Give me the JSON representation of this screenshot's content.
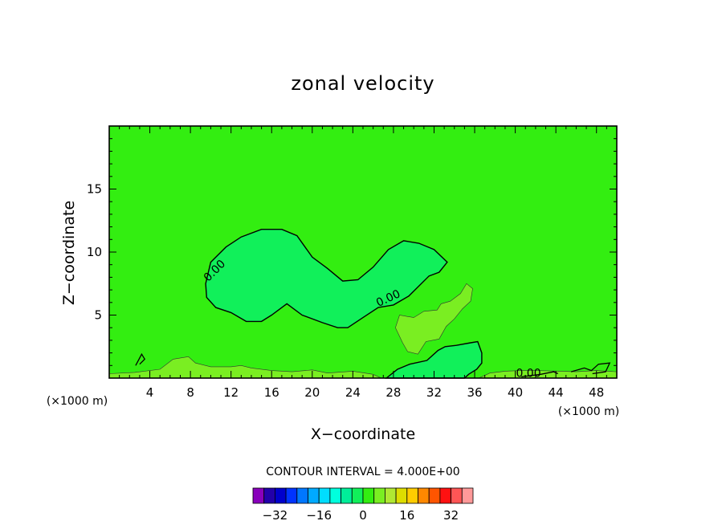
{
  "chart_data": {
    "type": "contour",
    "title": "zonal velocity",
    "xlabel": "X−coordinate",
    "ylabel": "Z−coordinate",
    "x_unit_left": "(×1000 m)",
    "x_unit_right": "(×1000 m)",
    "xlim": [
      0,
      50
    ],
    "ylim": [
      0,
      20
    ],
    "x_ticks": [
      4,
      8,
      12,
      16,
      20,
      24,
      28,
      32,
      36,
      40,
      44,
      48
    ],
    "x_tick_labels": [
      "4",
      "8",
      "12",
      "16",
      "20",
      "24",
      "28",
      "32",
      "36",
      "40",
      "44",
      "48"
    ],
    "y_ticks": [
      5,
      10,
      15
    ],
    "y_tick_labels": [
      "5",
      "10",
      "15"
    ],
    "grid": false,
    "background_level_color": "#33ee11",
    "contour_interval_text": "CONTOUR INTERVAL = 4.000E+00",
    "contour_labels": [
      {
        "text": "0.00",
        "x": 10.4,
        "y": 8.5,
        "angle": -45
      },
      {
        "text": "0.00",
        "x": 27.5,
        "y": 6.3,
        "angle": -25
      },
      {
        "text": "0.00",
        "x": 41.3,
        "y": 0.35,
        "angle": 0
      }
    ],
    "regions": [
      {
        "name": "negative-core",
        "level": -1,
        "color": "#11f05a",
        "outline": true,
        "points": [
          [
            9.5,
            7.5
          ],
          [
            10.0,
            9.2
          ],
          [
            11.5,
            10.4
          ],
          [
            13.0,
            11.2
          ],
          [
            15.0,
            11.8
          ],
          [
            17.0,
            11.8
          ],
          [
            18.5,
            11.3
          ],
          [
            20.0,
            9.6
          ],
          [
            21.5,
            8.7
          ],
          [
            23.0,
            7.7
          ],
          [
            24.5,
            7.8
          ],
          [
            26.0,
            8.8
          ],
          [
            27.5,
            10.2
          ],
          [
            29.0,
            10.9
          ],
          [
            30.5,
            10.7
          ],
          [
            32.0,
            10.2
          ],
          [
            33.3,
            9.2
          ],
          [
            32.5,
            8.4
          ],
          [
            31.5,
            8.1
          ],
          [
            29.5,
            6.5
          ],
          [
            28.0,
            5.8
          ],
          [
            26.5,
            5.6
          ],
          [
            25.0,
            4.8
          ],
          [
            23.5,
            4.0
          ],
          [
            22.5,
            4.0
          ],
          [
            21.0,
            4.4
          ],
          [
            19.0,
            5.0
          ],
          [
            17.5,
            5.9
          ],
          [
            16.0,
            5.0
          ],
          [
            15.0,
            4.5
          ],
          [
            13.5,
            4.5
          ],
          [
            12.0,
            5.2
          ],
          [
            10.5,
            5.6
          ],
          [
            9.6,
            6.4
          ]
        ]
      },
      {
        "name": "positive-patch",
        "level": 1,
        "color": "#7aee22",
        "outline": false,
        "points": [
          [
            28.2,
            4.0
          ],
          [
            28.6,
            5.0
          ],
          [
            30.0,
            4.8
          ],
          [
            31.0,
            5.3
          ],
          [
            32.3,
            5.4
          ],
          [
            32.7,
            5.9
          ],
          [
            33.6,
            6.1
          ],
          [
            34.6,
            6.7
          ],
          [
            35.2,
            7.5
          ],
          [
            35.8,
            7.1
          ],
          [
            35.6,
            6.1
          ],
          [
            34.8,
            5.5
          ],
          [
            34.0,
            4.7
          ],
          [
            33.2,
            4.1
          ],
          [
            32.5,
            3.1
          ],
          [
            31.2,
            2.9
          ],
          [
            30.4,
            1.9
          ],
          [
            29.4,
            2.1
          ],
          [
            28.9,
            2.8
          ]
        ]
      },
      {
        "name": "lower-right-negative",
        "level": -1,
        "color": "#11f05a",
        "outline": true,
        "points": [
          [
            27.3,
            0.0
          ],
          [
            28.4,
            0.7
          ],
          [
            29.6,
            1.1
          ],
          [
            31.3,
            1.4
          ],
          [
            32.4,
            2.2
          ],
          [
            33.1,
            2.5
          ],
          [
            34.2,
            2.6
          ],
          [
            35.6,
            2.8
          ],
          [
            36.3,
            2.9
          ],
          [
            36.7,
            2.0
          ],
          [
            36.7,
            1.2
          ],
          [
            36.2,
            0.7
          ],
          [
            35.4,
            0.3
          ],
          [
            35.0,
            0.0
          ]
        ]
      },
      {
        "name": "surface-positive-left",
        "level": 1,
        "color": "#7aee22",
        "outline": false,
        "points": [
          [
            0.0,
            0.35
          ],
          [
            2.5,
            0.45
          ],
          [
            5.0,
            0.7
          ],
          [
            6.3,
            1.5
          ],
          [
            7.8,
            1.7
          ],
          [
            8.5,
            1.2
          ],
          [
            10.0,
            0.9
          ],
          [
            12.0,
            0.9
          ],
          [
            13.0,
            1.0
          ],
          [
            14.0,
            0.8
          ],
          [
            16.0,
            0.6
          ],
          [
            18.0,
            0.5
          ],
          [
            20.0,
            0.65
          ],
          [
            21.5,
            0.4
          ],
          [
            24.0,
            0.55
          ],
          [
            26.0,
            0.3
          ],
          [
            26.8,
            0.0
          ],
          [
            0.0,
            0.0
          ]
        ]
      },
      {
        "name": "surface-positive-right",
        "level": 1,
        "color": "#7aee22",
        "outline": false,
        "points": [
          [
            36.4,
            0.0
          ],
          [
            37.5,
            0.4
          ],
          [
            39.0,
            0.55
          ],
          [
            40.5,
            0.6
          ],
          [
            42.0,
            0.6
          ],
          [
            44.5,
            0.55
          ],
          [
            46.0,
            0.5
          ],
          [
            48.0,
            0.6
          ],
          [
            50.0,
            0.5
          ],
          [
            50.0,
            0.0
          ]
        ]
      }
    ],
    "contour_lines": [
      {
        "level": 0,
        "points": [
          [
            2.6,
            1.0
          ],
          [
            3.0,
            1.6
          ],
          [
            3.2,
            1.9
          ],
          [
            3.5,
            1.5
          ],
          [
            3.0,
            1.1
          ]
        ]
      },
      {
        "level": 0,
        "points": [
          [
            45.5,
            0.5
          ],
          [
            46.8,
            0.8
          ],
          [
            47.5,
            0.6
          ],
          [
            48.2,
            1.1
          ],
          [
            49.3,
            1.2
          ],
          [
            48.9,
            0.5
          ],
          [
            47.6,
            0.35
          ]
        ]
      },
      {
        "level": 0,
        "points": [
          [
            40.6,
            0.1
          ],
          [
            42.5,
            0.3
          ],
          [
            43.8,
            0.5
          ],
          [
            44.2,
            0.35
          ]
        ]
      }
    ],
    "colorbar": {
      "levels": [
        -36,
        -32,
        -28,
        -24,
        -20,
        -16,
        -12,
        -8,
        -4,
        0,
        4,
        8,
        12,
        16,
        20,
        24,
        28,
        32,
        36
      ],
      "tick_values": [
        -32,
        -16,
        0,
        16,
        32
      ],
      "tick_labels": [
        "−32",
        "−16",
        "0",
        "16",
        "32"
      ],
      "colors": [
        "#8800bb",
        "#2200aa",
        "#0000cc",
        "#0033ff",
        "#0077ff",
        "#00aaff",
        "#00ddff",
        "#00ffdd",
        "#00ee99",
        "#11f05a",
        "#33ee11",
        "#7aee22",
        "#b0e833",
        "#dddd00",
        "#ffcc00",
        "#ff8800",
        "#ff5500",
        "#ff1111",
        "#ff5555",
        "#ff9999"
      ]
    }
  }
}
